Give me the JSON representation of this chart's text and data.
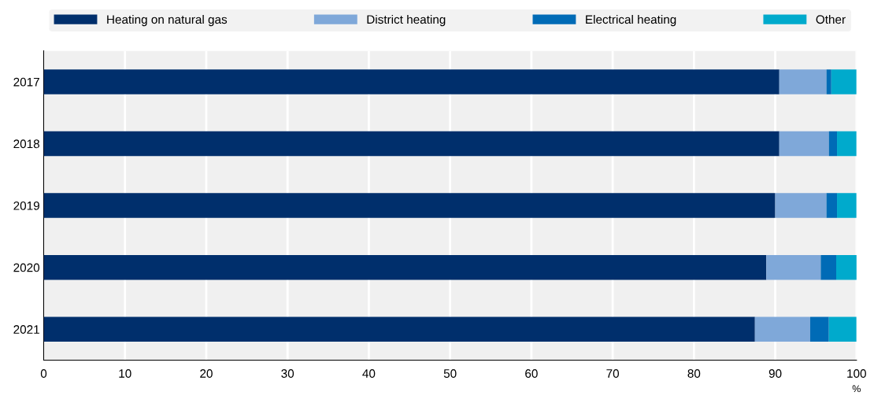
{
  "chart_data": {
    "type": "bar",
    "orientation": "horizontal",
    "stacked": true,
    "categories": [
      "2017",
      "2018",
      "2019",
      "2020",
      "2021"
    ],
    "series": [
      {
        "name": "Heating on natural gas",
        "color": "#002f6c",
        "values": [
          90.5,
          90.5,
          90.0,
          88.9,
          87.5
        ]
      },
      {
        "name": "District heating",
        "color": "#7fa8d9",
        "values": [
          5.8,
          6.1,
          6.3,
          6.7,
          6.8
        ]
      },
      {
        "name": "Electrical heating",
        "color": "#006bb6",
        "values": [
          0.6,
          1.0,
          1.3,
          1.9,
          2.3
        ]
      },
      {
        "name": "Other",
        "color": "#00aacc",
        "values": [
          3.1,
          2.4,
          2.4,
          2.8,
          3.4
        ]
      }
    ],
    "xlim": [
      0,
      100
    ],
    "xticks": [
      0,
      10,
      20,
      30,
      40,
      50,
      60,
      70,
      80,
      90,
      100
    ],
    "xlabel": "%",
    "grid": "x",
    "legend": "top"
  }
}
